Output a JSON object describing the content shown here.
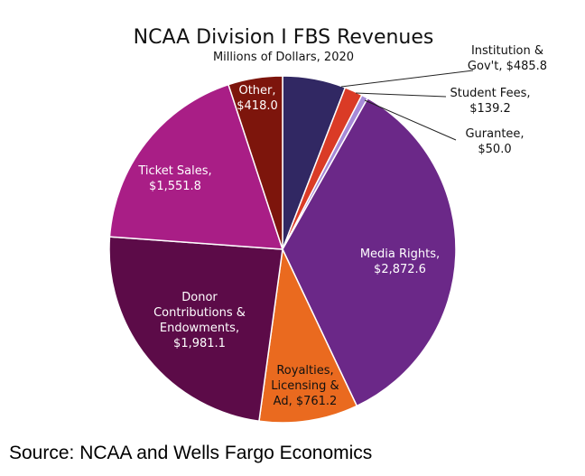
{
  "source": "Source: NCAA and Wells Fargo Economics",
  "chart_data": {
    "type": "pie",
    "title": "NCAA Division I FBS Revenues",
    "subtitle": "Millions of Dollars, 2020",
    "start_angle_deg": 0,
    "direction": "clockwise",
    "slices": [
      {
        "key": "institution",
        "label_lines": [
          "Institution &",
          "Gov't, $485.8"
        ],
        "value": 485.8,
        "color": "#312863",
        "label_color": "#111111",
        "outside": true
      },
      {
        "key": "student-fees",
        "label_lines": [
          "Student Fees,",
          "$139.2"
        ],
        "value": 139.2,
        "color": "#da3b26",
        "label_color": "#111111",
        "outside": true
      },
      {
        "key": "gurantee",
        "label_lines": [
          "Gurantee,",
          "$50.0"
        ],
        "value": 50.0,
        "color": "#a78ad8",
        "label_color": "#111111",
        "outside": true
      },
      {
        "key": "media-rights",
        "label_lines": [
          "Media Rights,",
          "$2,872.6"
        ],
        "value": 2872.6,
        "color": "#6b2888",
        "label_color": "#ffffff",
        "outside": false
      },
      {
        "key": "royalties",
        "label_lines": [
          "Royalties,",
          "Licensing &",
          "Ad, $761.2"
        ],
        "value": 761.2,
        "color": "#ea6a1f",
        "label_color": "#111111",
        "outside": false
      },
      {
        "key": "donor",
        "label_lines": [
          "Donor",
          "Contributions &",
          "Endowments,",
          "$1,981.1"
        ],
        "value": 1981.1,
        "color": "#5c0b48",
        "label_color": "#ffffff",
        "outside": false
      },
      {
        "key": "ticket-sales",
        "label_lines": [
          "Ticket Sales,",
          "$1,551.8"
        ],
        "value": 1551.8,
        "color": "#a91e86",
        "label_color": "#ffffff",
        "outside": false
      },
      {
        "key": "other",
        "label_lines": [
          "Other,",
          "$418.0"
        ],
        "value": 418.0,
        "color": "#7d150c",
        "label_color": "#ffffff",
        "outside": false
      }
    ]
  }
}
